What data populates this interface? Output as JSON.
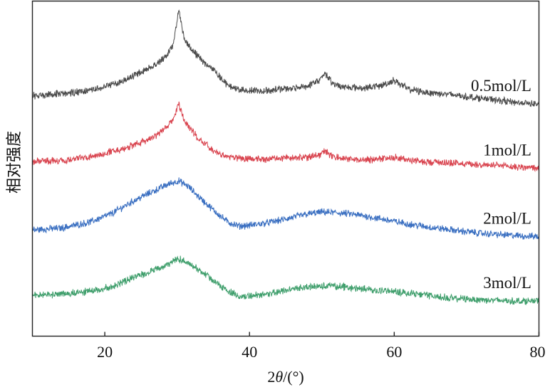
{
  "chart_data": {
    "type": "line",
    "xlabel": "2θ/(°)",
    "ylabel": "相对强度",
    "xlim": [
      10,
      80
    ],
    "xticks": [
      20,
      40,
      60,
      80
    ],
    "y_ticks_shown": false,
    "grid": false,
    "legend": "labels placed at right end of each curve",
    "series": [
      {
        "name": "0.5mol/L",
        "color": "#4a4a4a",
        "offset": 3.0,
        "x": [
          10,
          14,
          18,
          22,
          25,
          27,
          28.5,
          29.5,
          30.2,
          31,
          32,
          33,
          34,
          35.3,
          36.5,
          38,
          40,
          42,
          44,
          46,
          48,
          49.5,
          50.4,
          51.3,
          52.5,
          54,
          56,
          58,
          59.3,
          60,
          60.8,
          62,
          64,
          67,
          70,
          74,
          77,
          80
        ],
        "y": [
          0.02,
          0.05,
          0.1,
          0.22,
          0.38,
          0.5,
          0.62,
          0.8,
          1.32,
          0.88,
          0.72,
          0.6,
          0.5,
          0.4,
          0.22,
          0.13,
          0.1,
          0.1,
          0.12,
          0.14,
          0.17,
          0.24,
          0.37,
          0.22,
          0.17,
          0.15,
          0.14,
          0.17,
          0.22,
          0.26,
          0.2,
          0.12,
          0.08,
          0.05,
          0.01,
          -0.04,
          -0.08,
          -0.1
        ]
      },
      {
        "name": "1mol/L",
        "color": "#d9444f",
        "offset": 2.0,
        "x": [
          10,
          14,
          18,
          22,
          25,
          27,
          28.5,
          29.5,
          30.2,
          31,
          32,
          33,
          34.5,
          36,
          38,
          40,
          42,
          44,
          46,
          48,
          49.5,
          50.4,
          51.3,
          53,
          56,
          58.5,
          60,
          61.5,
          64,
          67,
          70,
          74,
          77,
          80
        ],
        "y": [
          0.03,
          0.05,
          0.1,
          0.21,
          0.32,
          0.42,
          0.55,
          0.68,
          0.9,
          0.65,
          0.5,
          0.37,
          0.24,
          0.14,
          0.09,
          0.07,
          0.07,
          0.08,
          0.09,
          0.1,
          0.13,
          0.18,
          0.12,
          0.08,
          0.05,
          0.07,
          0.1,
          0.06,
          0.03,
          0.02,
          0.0,
          -0.03,
          -0.05,
          -0.07
        ]
      },
      {
        "name": "2mol/L",
        "color": "#3a6fc1",
        "offset": 1.0,
        "x": [
          10,
          14,
          18,
          21,
          24,
          27,
          29,
          30.2,
          31.5,
          33,
          35,
          37,
          38.5,
          40,
          42,
          44,
          46,
          48,
          50,
          52,
          54,
          56,
          58,
          60,
          62,
          65,
          68,
          72,
          76,
          80
        ],
        "y": [
          0.0,
          0.03,
          0.12,
          0.25,
          0.44,
          0.6,
          0.7,
          0.74,
          0.66,
          0.5,
          0.3,
          0.12,
          0.06,
          0.07,
          0.1,
          0.14,
          0.19,
          0.24,
          0.27,
          0.26,
          0.24,
          0.21,
          0.17,
          0.13,
          0.09,
          0.04,
          0.0,
          -0.05,
          -0.08,
          -0.1
        ]
      },
      {
        "name": "3mol/L",
        "color": "#3e9e6b",
        "offset": 0.0,
        "x": [
          10,
          14,
          18,
          21,
          24,
          27,
          29,
          30.2,
          31.5,
          33,
          35,
          37,
          38.5,
          40,
          42,
          44,
          46,
          48,
          50,
          52,
          54,
          56,
          58,
          60,
          62,
          65,
          68,
          72,
          76,
          80
        ],
        "y": [
          0.02,
          0.03,
          0.08,
          0.15,
          0.28,
          0.4,
          0.5,
          0.56,
          0.51,
          0.4,
          0.24,
          0.08,
          0.0,
          0.0,
          0.03,
          0.07,
          0.11,
          0.14,
          0.16,
          0.15,
          0.13,
          0.11,
          0.09,
          0.07,
          0.05,
          0.01,
          -0.03,
          -0.05,
          -0.07,
          -0.07
        ]
      }
    ]
  }
}
